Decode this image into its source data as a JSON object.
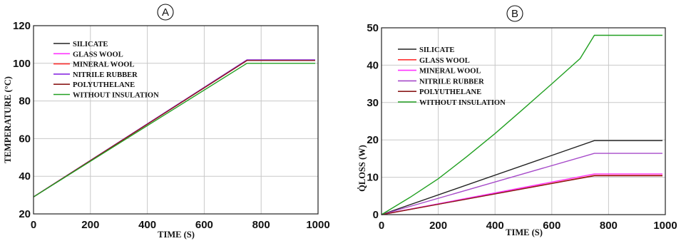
{
  "chart_data": [
    {
      "panel": "A",
      "type": "line",
      "xlabel": "TIME (S)",
      "ylabel": "TEMPERATURE (°C)",
      "xlim": [
        0,
        1000
      ],
      "ylim": [
        20,
        120
      ],
      "xticks": [
        0,
        200,
        400,
        600,
        800,
        1000
      ],
      "yticks": [
        20,
        40,
        60,
        80,
        100,
        120
      ],
      "grid": true,
      "legend_position": "top-left",
      "series": [
        {
          "name": "SILICATE",
          "color": "#222222",
          "x": [
            0,
            750,
            990
          ],
          "y": [
            29,
            101.5,
            101.5
          ]
        },
        {
          "name": "GLASS WOOL",
          "color": "#ff33ff",
          "x": [
            0,
            750,
            990
          ],
          "y": [
            29,
            101.5,
            101.5
          ]
        },
        {
          "name": "MINERAL WOOL",
          "color": "#ff3030",
          "x": [
            0,
            750,
            990
          ],
          "y": [
            29,
            101.5,
            101.5
          ]
        },
        {
          "name": "NITRILE RUBBER",
          "color": "#8a2be2",
          "x": [
            0,
            750,
            990
          ],
          "y": [
            29,
            101.8,
            101.8
          ]
        },
        {
          "name": "POLYUTHELANE",
          "color": "#8b1a1a",
          "x": [
            0,
            750,
            990
          ],
          "y": [
            29,
            101.5,
            101.5
          ]
        },
        {
          "name": "WITHOUT INSULATION",
          "color": "#22a022",
          "x": [
            0,
            750,
            990
          ],
          "y": [
            29,
            100,
            100
          ]
        }
      ]
    },
    {
      "panel": "B",
      "type": "line",
      "xlabel": "TIME (S)",
      "ylabel": "Q̇LOSS (W)",
      "xlim": [
        0,
        1000
      ],
      "ylim": [
        0,
        50
      ],
      "xticks": [
        0,
        200,
        400,
        600,
        800,
        1000
      ],
      "yticks": [
        0,
        10,
        20,
        30,
        40,
        50
      ],
      "grid": true,
      "legend_position": "top-left",
      "series": [
        {
          "name": "SILICATE",
          "color": "#222222",
          "x": [
            0,
            750,
            990
          ],
          "y": [
            0,
            19.8,
            19.8
          ]
        },
        {
          "name": "GLASS WOOL",
          "color": "#ff3030",
          "x": [
            0,
            750,
            990
          ],
          "y": [
            0,
            10.5,
            10.5
          ]
        },
        {
          "name": "MINERAL WOOL",
          "color": "#ff33ff",
          "x": [
            0,
            750,
            990
          ],
          "y": [
            0,
            10.9,
            10.9
          ]
        },
        {
          "name": "NITRILE RUBBER",
          "color": "#a64ac9",
          "x": [
            0,
            750,
            990
          ],
          "y": [
            0,
            16.4,
            16.4
          ]
        },
        {
          "name": "POLYUTHELANE",
          "color": "#8b1a1a",
          "x": [
            0,
            750,
            990
          ],
          "y": [
            0,
            10.4,
            10.4
          ]
        },
        {
          "name": "WITHOUT INSULATION",
          "color": "#22a022",
          "x": [
            0,
            100,
            200,
            300,
            400,
            500,
            600,
            700,
            750,
            990
          ],
          "y": [
            0,
            4.6,
            9.6,
            15.5,
            21.7,
            28.3,
            35.0,
            41.8,
            48.0,
            48.0
          ]
        }
      ]
    }
  ]
}
